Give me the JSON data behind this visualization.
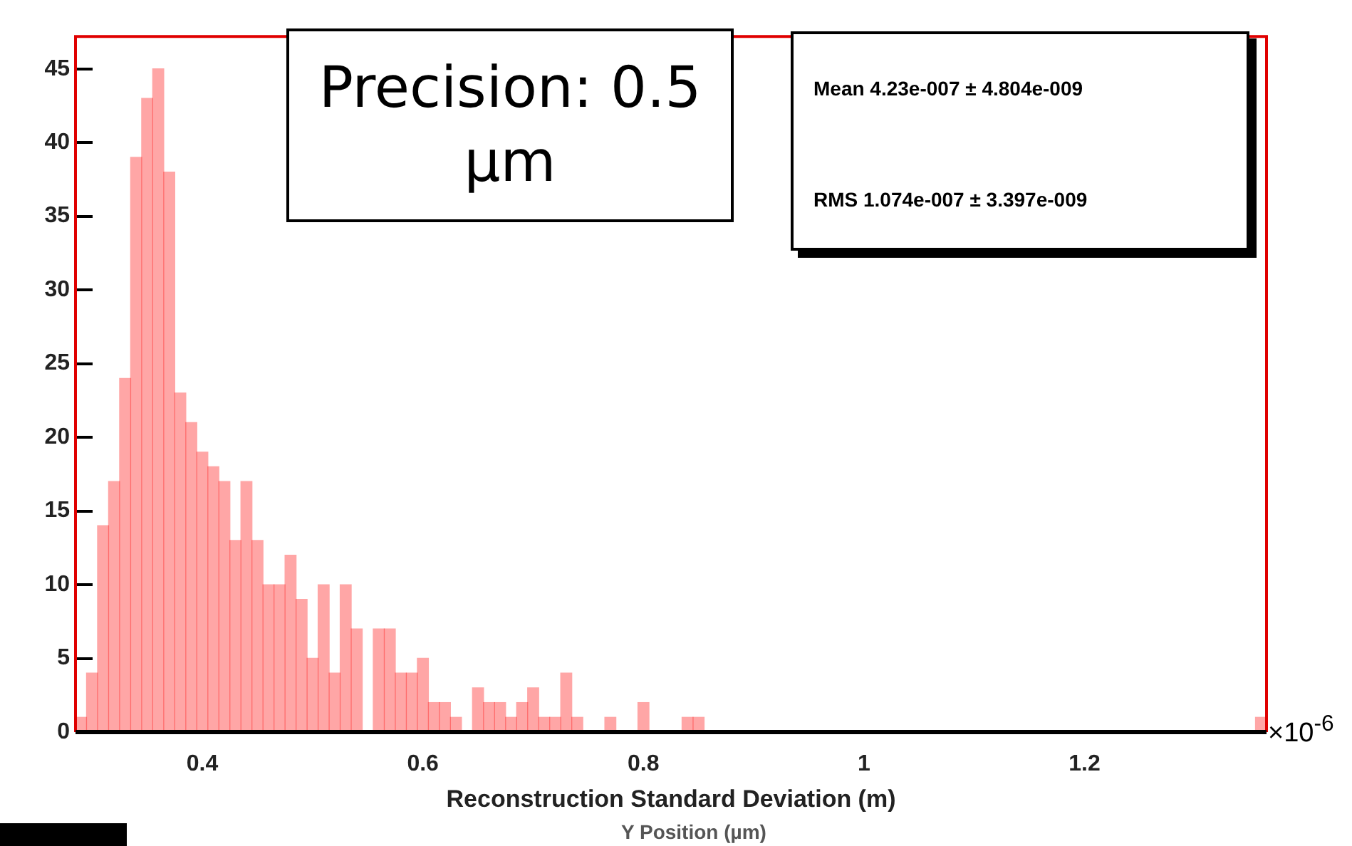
{
  "chart_data": {
    "type": "histogram",
    "xlabel": "Reconstruction Standard Deviation (m)",
    "bins": [
      0.285,
      0.295,
      0.305,
      0.315,
      0.325,
      0.335,
      0.345,
      0.355,
      0.365,
      0.375,
      0.385,
      0.395,
      0.405,
      0.415,
      0.425,
      0.435,
      0.445,
      0.455,
      0.465,
      0.475,
      0.485,
      0.495,
      0.505,
      0.515,
      0.525,
      0.535,
      0.545,
      0.555,
      0.565,
      0.575,
      0.585,
      0.595,
      0.605,
      0.615,
      0.625,
      0.635,
      0.645,
      0.655,
      0.665,
      0.675,
      0.685,
      0.695,
      0.705,
      0.715,
      0.725,
      0.735,
      0.745,
      0.755,
      0.765,
      0.775,
      0.785,
      0.795,
      0.805,
      0.815,
      0.825,
      0.835,
      0.845,
      0.855,
      0.865,
      0.875,
      0.885,
      0.895,
      0.905,
      0.915,
      0.925,
      0.935,
      0.945,
      0.955,
      0.965,
      0.975,
      0.985,
      0.995,
      1.005,
      1.015,
      1.025,
      1.035,
      1.045,
      1.055,
      1.065,
      1.075,
      1.085,
      1.095,
      1.105,
      1.115,
      1.125,
      1.135,
      1.145,
      1.155,
      1.165,
      1.175,
      1.185,
      1.195,
      1.205,
      1.215,
      1.225,
      1.235,
      1.245,
      1.255,
      1.265,
      1.275,
      1.285,
      1.295,
      1.305,
      1.315,
      1.325,
      1.335,
      1.345,
      1.355,
      1.365
    ],
    "values": [
      1,
      4,
      14,
      17,
      24,
      39,
      43,
      45,
      38,
      23,
      21,
      19,
      18,
      17,
      13,
      17,
      13,
      10,
      10,
      12,
      9,
      5,
      10,
      4,
      10,
      7,
      0,
      7,
      7,
      4,
      4,
      5,
      2,
      2,
      1,
      0,
      3,
      2,
      2,
      1,
      2,
      3,
      1,
      1,
      4,
      1,
      0,
      0,
      1,
      0,
      0,
      2,
      0,
      0,
      0,
      1,
      1,
      0,
      0,
      0,
      0,
      0,
      0,
      0,
      0,
      0,
      0,
      0,
      0,
      0,
      0,
      0,
      0,
      0,
      0,
      0,
      0,
      0,
      0,
      0,
      0,
      0,
      0,
      0,
      0,
      0,
      0,
      0,
      0,
      0,
      0,
      0,
      0,
      0,
      0,
      0,
      0,
      0,
      0,
      0,
      0,
      0,
      0,
      0,
      0,
      0,
      0,
      1
    ],
    "color": "#ff0000",
    "xlim": [
      0.285,
      1.365
    ],
    "xticks": [
      0.4,
      0.6,
      0.8,
      1,
      1.2
    ],
    "ylim": [
      0,
      47.2
    ],
    "yticks": [
      0,
      5,
      10,
      15,
      20,
      25,
      30,
      35,
      40,
      45
    ],
    "grid": false,
    "legend": false,
    "annotations": [
      "Precision: 0.5 µm",
      "Mean    4.23e-007 ± 4.804e-009",
      "RMS   1.074e-007 ± 3.397e-009",
      "×10$^{-6}$",
      "Y Position (µm)"
    ]
  }
}
